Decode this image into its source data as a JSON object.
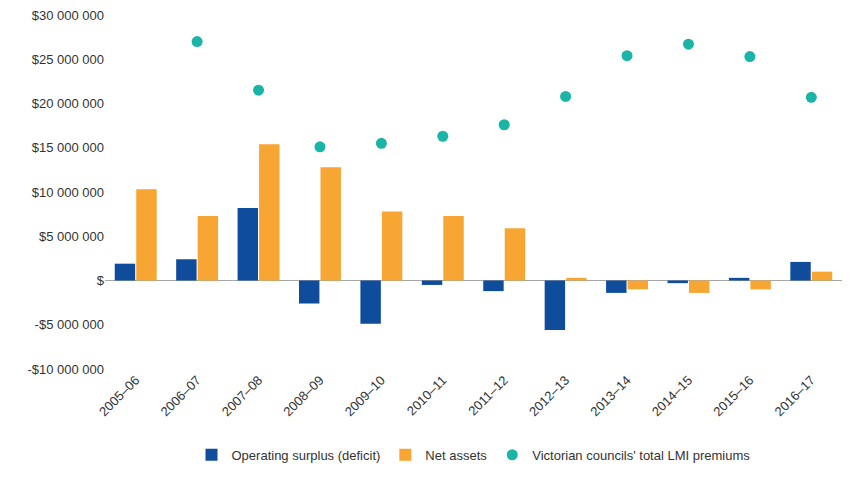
{
  "chart_data": {
    "type": "bar",
    "categories": [
      "2005–06",
      "2006–07",
      "2007–08",
      "2008–09",
      "2009–10",
      "2010–11",
      "2011–12",
      "2012–13",
      "2013–14",
      "2014–15",
      "2015–16",
      "2016–17"
    ],
    "series": [
      {
        "name": "Operating surplus (deficit)",
        "type": "bar",
        "color": "#0f4c9c",
        "values": [
          1900000,
          2400000,
          8200000,
          -2600000,
          -4900000,
          -500000,
          -1200000,
          -5600000,
          -1400000,
          -300000,
          300000,
          2100000
        ]
      },
      {
        "name": "Net assets",
        "type": "bar",
        "color": "#f7a533",
        "values": [
          10300000,
          7300000,
          15400000,
          12800000,
          7800000,
          7300000,
          5900000,
          300000,
          -1000000,
          -1400000,
          -1000000,
          1000000
        ]
      },
      {
        "name": "Victorian councils' total LMI premiums",
        "type": "scatter",
        "marker": "circle",
        "color": "#1bb5a8",
        "values": [
          null,
          27000000,
          21500000,
          15100000,
          15500000,
          16300000,
          17600000,
          20800000,
          25400000,
          26700000,
          25300000,
          20700000
        ]
      }
    ],
    "ylim": [
      -10000000,
      30000000
    ],
    "yticks": [
      {
        "value": -10000000,
        "label": "-$10 000 000"
      },
      {
        "value": -5000000,
        "label": "-$5 000 000"
      },
      {
        "value": 0,
        "label": "$"
      },
      {
        "value": 5000000,
        "label": "$5 000 000"
      },
      {
        "value": 10000000,
        "label": "$10 000 000"
      },
      {
        "value": 15000000,
        "label": "$15 000 000"
      },
      {
        "value": 20000000,
        "label": "$20 000 000"
      },
      {
        "value": 25000000,
        "label": "$25 000 000"
      },
      {
        "value": 30000000,
        "label": "$30 000 000"
      }
    ],
    "grid": false,
    "legend": "bottom"
  }
}
